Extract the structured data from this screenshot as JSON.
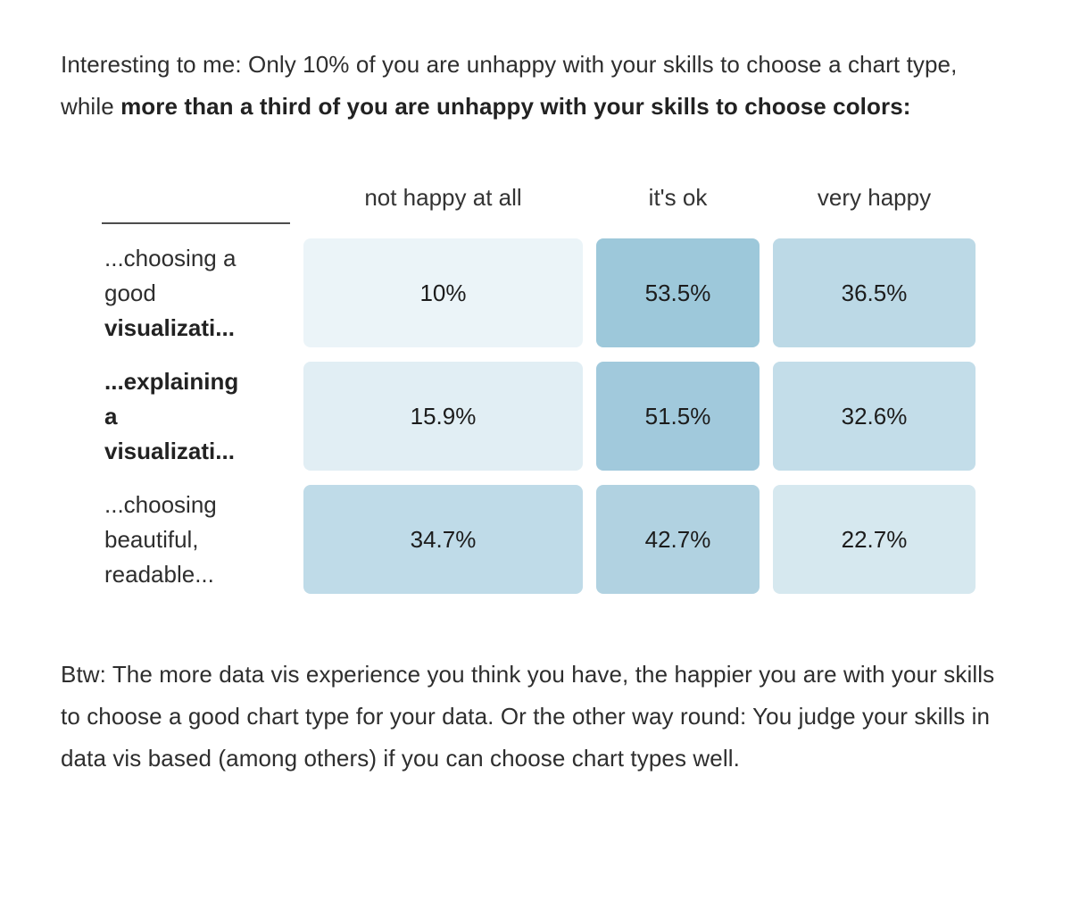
{
  "page": {
    "background": "#ffffff"
  },
  "intro": {
    "text_regular": "Interesting to me: Only 10% of you are unhappy with your skills to choose a chart type, while ",
    "text_bold": "more than a third of you are unhappy with your skills to choose colors:"
  },
  "chart_data": {
    "type": "heatmap",
    "columns": [
      "not happy at all",
      "it's ok",
      "very happy"
    ],
    "rows": [
      {
        "label": "...choosing a good visualizati...",
        "values": [
          10,
          53.5,
          36.5
        ]
      },
      {
        "label": "...explaining a visualizati...",
        "values": [
          15.9,
          51.5,
          32.6
        ]
      },
      {
        "label": "...choosing beautiful, readable...",
        "values": [
          34.7,
          42.7,
          22.7
        ]
      }
    ],
    "unit": "%",
    "color_scale": {
      "low": "#ebf4f8",
      "high": "#9dc8da",
      "domain": [
        10,
        53.5
      ]
    },
    "legend_position": "none",
    "grid": false
  },
  "table": {
    "col_headers": [
      "not happy at all",
      "it's ok",
      "very happy"
    ],
    "rows": [
      {
        "label_lines": [
          {
            "text": "...choosing a",
            "style": ""
          },
          {
            "text": "good",
            "style": ""
          },
          {
            "text": "visualizati...",
            "style": "bold"
          }
        ],
        "cells": [
          {
            "value": "10%",
            "color": "#ebf4f8"
          },
          {
            "value": "53.5%",
            "color": "#9dc8da"
          },
          {
            "value": "36.5%",
            "color": "#bcd9e6"
          }
        ]
      },
      {
        "label_lines": [
          {
            "text": "...explaining",
            "style": "bold"
          },
          {
            "text": "a",
            "style": "bold"
          },
          {
            "text": "visualizati...",
            "style": "bold"
          }
        ],
        "cells": [
          {
            "value": "15.9%",
            "color": "#e1eef4"
          },
          {
            "value": "51.5%",
            "color": "#a1c9dc"
          },
          {
            "value": "32.6%",
            "color": "#c3dde9"
          }
        ]
      },
      {
        "label_lines": [
          {
            "text": "...choosing",
            "style": ""
          },
          {
            "text": "beautiful,",
            "style": ""
          },
          {
            "text": "readable...",
            "style": ""
          }
        ],
        "cells": [
          {
            "value": "34.7%",
            "color": "#bfdbe8"
          },
          {
            "value": "42.7%",
            "color": "#b1d2e1"
          },
          {
            "value": "22.7%",
            "color": "#d6e8ef"
          }
        ]
      }
    ]
  },
  "outro": {
    "text": "Btw: The more data vis experience you think you have, the happier you are with your skills to choose a good chart type for your data. Or the other way round: You judge your skills in data vis based (among others) if you can choose chart types well."
  }
}
